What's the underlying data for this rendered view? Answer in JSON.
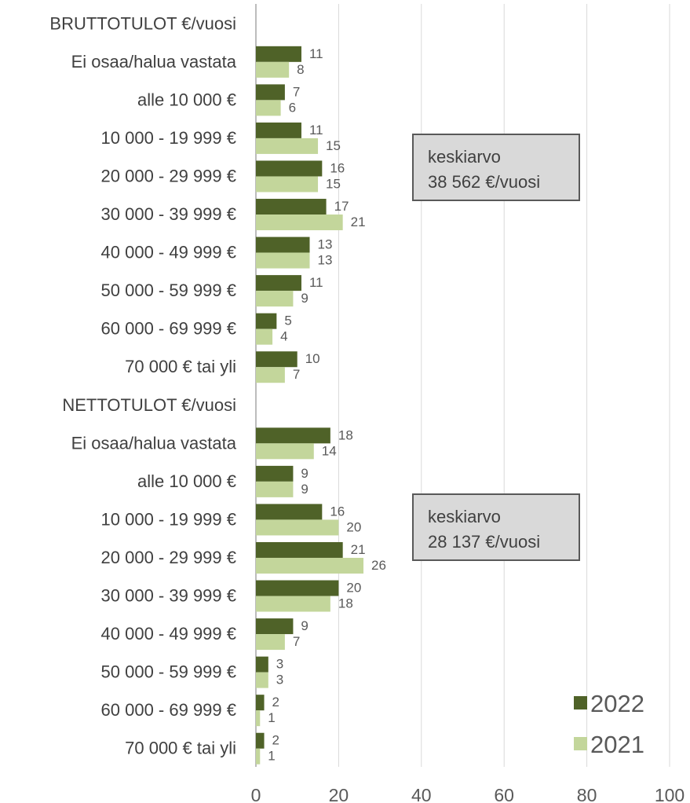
{
  "chart_data": {
    "type": "bar",
    "orientation": "horizontal",
    "xlim": [
      0,
      100
    ],
    "x_ticks": [
      "0",
      "20",
      "40",
      "60",
      "80",
      "100"
    ],
    "grid": true,
    "legend_position": "bottom-right",
    "categories": [
      "BRUTTOTULOT €/vuosi",
      "Ei osaa/halua vastata",
      "alle 10 000 €",
      "10 000 - 19 999 €",
      "20 000 - 29 999 €",
      "30 000 - 39 999 €",
      "40 000 - 49 999 €",
      "50 000 - 59 999 €",
      "60 000 - 69 999 €",
      "70 000 € tai yli",
      "NETTOTULOT €/vuosi",
      "Ei osaa/halua vastata",
      "alle 10 000 €",
      "10 000 - 19 999 €",
      "20 000 - 29 999 €",
      "30 000 - 39 999 €",
      "40 000 - 49 999 €",
      "50 000 - 59 999 €",
      "60 000 - 69 999 €",
      "70 000 € tai yli"
    ],
    "series": [
      {
        "name": "2022",
        "color": "#4f6228",
        "values": [
          null,
          11,
          7,
          11,
          16,
          17,
          13,
          11,
          5,
          10,
          null,
          18,
          9,
          16,
          21,
          20,
          9,
          3,
          2,
          2
        ]
      },
      {
        "name": "2021",
        "color": "#c3d69b",
        "values": [
          null,
          8,
          6,
          15,
          15,
          21,
          13,
          9,
          4,
          7,
          null,
          14,
          9,
          20,
          26,
          18,
          7,
          3,
          1,
          1
        ]
      }
    ]
  },
  "annotations": [
    {
      "line1": "keskiarvo",
      "line2": "38 562 €/vuosi"
    },
    {
      "line1": "keskiarvo",
      "line2": "28 137 €/vuosi"
    }
  ]
}
